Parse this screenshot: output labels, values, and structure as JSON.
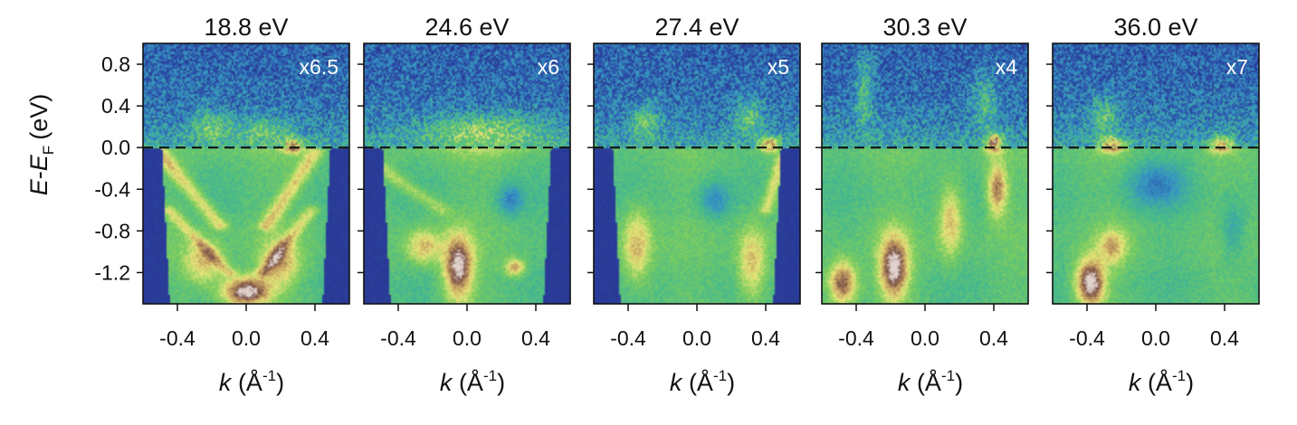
{
  "figure": {
    "y_axis_label": {
      "E": "E",
      "dash": "-",
      "E2": "E",
      "sub": "F",
      "unit": "(eV)"
    },
    "x_axis_label": {
      "k": "k",
      "unit_open": "(Å",
      "sup": "-1",
      "unit_close": ")"
    }
  },
  "chart_data": [
    {
      "type": "heatmap",
      "title": "18.8 eV",
      "scale_label": "x6.5",
      "x_ticks": [
        -0.4,
        0.0,
        0.4
      ],
      "x_tick_labels": [
        "-0.4",
        "0.0",
        "0.4"
      ],
      "y_ticks": [
        0.8,
        0.4,
        0.0,
        -0.4,
        -0.8,
        -1.2
      ],
      "y_tick_labels": [
        "0.8",
        "0.4",
        "0.0",
        "-0.4",
        "-0.8",
        "-1.2"
      ],
      "xlim": [
        -0.6,
        0.6
      ],
      "ylim": [
        -1.5,
        1.0
      ],
      "fermi_line_y": 0.0,
      "dark_edges": true,
      "features": [
        {
          "k": 0.0,
          "E": -1.38,
          "sk": 0.1,
          "sE": 0.1,
          "amp": 1.0
        },
        {
          "k": -0.25,
          "E": -1.1,
          "sk": 0.08,
          "sE": 0.15,
          "amp": 0.55
        },
        {
          "k": 0.2,
          "E": -1.1,
          "sk": 0.08,
          "sE": 0.15,
          "amp": 0.55
        },
        {
          "k": 0.27,
          "E": 0.02,
          "sk": 0.04,
          "sE": 0.05,
          "amp": 0.85
        },
        {
          "k": -0.2,
          "E": 0.2,
          "sk": 0.08,
          "sE": 0.12,
          "amp": 0.45
        },
        {
          "k": 0.1,
          "E": 0.15,
          "sk": 0.12,
          "sE": 0.1,
          "amp": 0.4
        }
      ],
      "bands": [
        {
          "k0": -0.5,
          "E0": -0.05,
          "k1": -0.15,
          "E1": -0.75,
          "w": 0.035,
          "amp": 0.55
        },
        {
          "k0": 0.4,
          "E0": -0.05,
          "k1": 0.12,
          "E1": -0.75,
          "w": 0.035,
          "amp": 0.55
        },
        {
          "k0": -0.45,
          "E0": -0.6,
          "k1": -0.1,
          "E1": -1.2,
          "w": 0.03,
          "amp": 0.45
        },
        {
          "k0": 0.38,
          "E0": -0.6,
          "k1": 0.1,
          "E1": -1.2,
          "w": 0.03,
          "amp": 0.45
        }
      ]
    },
    {
      "type": "heatmap",
      "title": "24.6 eV",
      "scale_label": "x6",
      "x_ticks": [
        -0.4,
        0.0,
        0.4
      ],
      "x_tick_labels": [
        "-0.4",
        "0.0",
        "0.4"
      ],
      "y_ticks": [
        0.8,
        0.4,
        0.0,
        -0.4,
        -0.8,
        -1.2
      ],
      "xlim": [
        -0.6,
        0.6
      ],
      "ylim": [
        -1.5,
        1.0
      ],
      "fermi_line_y": 0.0,
      "dark_edges": true,
      "features": [
        {
          "k": -0.05,
          "E": -1.15,
          "sk": 0.06,
          "sE": 0.22,
          "amp": 0.95
        },
        {
          "k": -0.25,
          "E": -0.95,
          "sk": 0.07,
          "sE": 0.12,
          "amp": 0.55
        },
        {
          "k": 0.1,
          "E": 0.15,
          "sk": 0.25,
          "sE": 0.12,
          "amp": 0.55
        },
        {
          "k": 0.28,
          "E": -1.15,
          "sk": 0.04,
          "sE": 0.06,
          "amp": 0.6
        },
        {
          "k": 0.25,
          "E": -0.5,
          "sk": 0.05,
          "sE": 0.1,
          "amp": -0.5
        }
      ],
      "bands": [
        {
          "k0": -0.5,
          "E0": -0.2,
          "k1": -0.15,
          "E1": -0.6,
          "w": 0.04,
          "amp": 0.35
        }
      ]
    },
    {
      "type": "heatmap",
      "title": "27.4 eV",
      "scale_label": "x5",
      "x_ticks": [
        -0.4,
        0.0,
        0.4
      ],
      "x_tick_labels": [
        "-0.4",
        "0.0",
        "0.4"
      ],
      "y_ticks": [
        0.8,
        0.4,
        0.0,
        -0.4,
        -0.8,
        -1.2
      ],
      "xlim": [
        -0.6,
        0.6
      ],
      "ylim": [
        -1.5,
        1.0
      ],
      "fermi_line_y": 0.0,
      "dark_edges": true,
      "features": [
        {
          "k": 0.42,
          "E": 0.04,
          "sk": 0.04,
          "sE": 0.05,
          "amp": 0.95
        },
        {
          "k": -0.3,
          "E": 0.25,
          "sk": 0.06,
          "sE": 0.12,
          "amp": 0.45
        },
        {
          "k": 0.3,
          "E": 0.3,
          "sk": 0.06,
          "sE": 0.12,
          "amp": 0.45
        },
        {
          "k": -0.35,
          "E": -0.95,
          "sk": 0.06,
          "sE": 0.25,
          "amp": 0.55
        },
        {
          "k": 0.32,
          "E": -1.1,
          "sk": 0.06,
          "sE": 0.25,
          "amp": 0.55
        },
        {
          "k": 0.1,
          "E": -0.5,
          "sk": 0.06,
          "sE": 0.12,
          "amp": -0.45
        }
      ],
      "bands": [
        {
          "k0": 0.5,
          "E0": -0.1,
          "k1": 0.4,
          "E1": -0.6,
          "w": 0.03,
          "amp": 0.5
        }
      ]
    },
    {
      "type": "heatmap",
      "title": "30.3 eV",
      "scale_label": "x4",
      "x_ticks": [
        -0.4,
        0.0,
        0.4
      ],
      "x_tick_labels": [
        "-0.4",
        "0.0",
        "0.4"
      ],
      "y_ticks": [
        0.8,
        0.4,
        0.0,
        -0.4,
        -0.8,
        -1.2
      ],
      "xlim": [
        -0.6,
        0.6
      ],
      "ylim": [
        -1.5,
        1.0
      ],
      "fermi_line_y": 0.0,
      "dark_edges": false,
      "features": [
        {
          "k": 0.4,
          "E": 0.05,
          "sk": 0.035,
          "sE": 0.06,
          "amp": 1.0
        },
        {
          "k": -0.35,
          "E": 0.55,
          "sk": 0.04,
          "sE": 0.25,
          "amp": 0.45
        },
        {
          "k": 0.35,
          "E": 0.45,
          "sk": 0.05,
          "sE": 0.2,
          "amp": 0.4
        },
        {
          "k": -0.18,
          "E": -1.15,
          "sk": 0.06,
          "sE": 0.22,
          "amp": 0.95
        },
        {
          "k": -0.48,
          "E": -1.3,
          "sk": 0.06,
          "sE": 0.15,
          "amp": 0.85
        },
        {
          "k": 0.42,
          "E": -0.4,
          "sk": 0.04,
          "sE": 0.18,
          "amp": 0.7
        },
        {
          "k": 0.15,
          "E": -0.7,
          "sk": 0.05,
          "sE": 0.25,
          "amp": 0.55
        }
      ],
      "bands": []
    },
    {
      "type": "heatmap",
      "title": "36.0 eV",
      "scale_label": "x7",
      "x_ticks": [
        -0.4,
        0.0,
        0.4
      ],
      "x_tick_labels": [
        "-0.4",
        "0.0",
        "0.4"
      ],
      "y_ticks": [
        0.8,
        0.4,
        0.0,
        -0.4,
        -0.8,
        -1.2
      ],
      "xlim": [
        -0.6,
        0.6
      ],
      "ylim": [
        -1.5,
        1.0
      ],
      "fermi_line_y": 0.0,
      "dark_edges": false,
      "features": [
        {
          "k": -0.25,
          "E": 0.03,
          "sk": 0.05,
          "sE": 0.05,
          "amp": 0.85
        },
        {
          "k": 0.38,
          "E": 0.03,
          "sk": 0.05,
          "sE": 0.05,
          "amp": 0.85
        },
        {
          "k": -0.3,
          "E": 0.3,
          "sk": 0.06,
          "sE": 0.15,
          "amp": 0.45
        },
        {
          "k": -0.38,
          "E": -1.3,
          "sk": 0.06,
          "sE": 0.16,
          "amp": 1.0
        },
        {
          "k": -0.25,
          "E": -0.95,
          "sk": 0.06,
          "sE": 0.12,
          "amp": 0.5
        },
        {
          "k": 0.0,
          "E": -0.35,
          "sk": 0.12,
          "sE": 0.15,
          "amp": -0.5
        },
        {
          "k": 0.45,
          "E": -0.8,
          "sk": 0.05,
          "sE": 0.2,
          "amp": -0.35
        }
      ],
      "bands": []
    }
  ]
}
